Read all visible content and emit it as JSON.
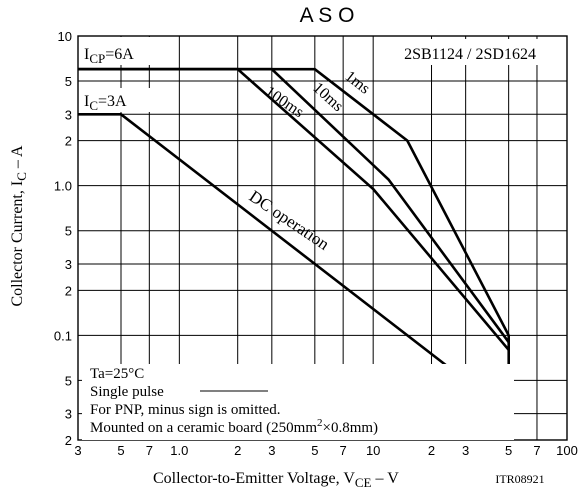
{
  "chart_data": {
    "type": "line",
    "title": "A S O",
    "part_number": "2SB1124 / 2SD1624",
    "image_code": "ITR08921",
    "xlabel": {
      "main": "Collector-to-Emitter Voltage, V",
      "sub": "CE",
      "tail": " – V"
    },
    "ylabel": {
      "main": "Collector Current, I",
      "sub": "C",
      "tail": " – A"
    },
    "xscale": "log",
    "yscale": "log",
    "xlim": [
      0.3,
      100
    ],
    "ylim": [
      0.02,
      10
    ],
    "grid": true,
    "x_ticks": [
      {
        "v": 0.3,
        "t": "3"
      },
      {
        "v": 0.5,
        "t": "5"
      },
      {
        "v": 0.7,
        "t": "7"
      },
      {
        "v": 1,
        "t": "1.0"
      },
      {
        "v": 2,
        "t": "2"
      },
      {
        "v": 3,
        "t": "3"
      },
      {
        "v": 5,
        "t": "5"
      },
      {
        "v": 7,
        "t": "7"
      },
      {
        "v": 10,
        "t": "10"
      },
      {
        "v": 20,
        "t": "2"
      },
      {
        "v": 30,
        "t": "3"
      },
      {
        "v": 50,
        "t": "5"
      },
      {
        "v": 70,
        "t": "7"
      },
      {
        "v": 100,
        "t": "100"
      }
    ],
    "y_ticks": [
      {
        "v": 0.02,
        "t": "2"
      },
      {
        "v": 0.03,
        "t": "3"
      },
      {
        "v": 0.05,
        "t": "5"
      },
      {
        "v": 0.1,
        "t": "0.1"
      },
      {
        "v": 0.2,
        "t": "2"
      },
      {
        "v": 0.3,
        "t": "3"
      },
      {
        "v": 0.5,
        "t": "5"
      },
      {
        "v": 1,
        "t": "1.0"
      },
      {
        "v": 2,
        "t": "2"
      },
      {
        "v": 3,
        "t": "3"
      },
      {
        "v": 5,
        "t": "5"
      },
      {
        "v": 10,
        "t": "10"
      }
    ],
    "series": [
      {
        "name": "1ms",
        "points": [
          [
            0.3,
            6
          ],
          [
            5,
            6
          ],
          [
            15,
            2
          ],
          [
            50,
            0.1
          ]
        ]
      },
      {
        "name": "10ms",
        "points": [
          [
            0.3,
            6
          ],
          [
            3,
            6
          ],
          [
            12,
            1.1
          ],
          [
            50,
            0.09
          ]
        ]
      },
      {
        "name": "100ms",
        "points": [
          [
            0.3,
            6
          ],
          [
            2,
            6
          ],
          [
            10,
            0.95
          ],
          [
            50,
            0.08
          ]
        ]
      },
      {
        "name": "DC operation",
        "points": [
          [
            0.3,
            3
          ],
          [
            0.5,
            3
          ],
          [
            50,
            0.03
          ],
          [
            50,
            0.1
          ]
        ]
      }
    ],
    "annotations": {
      "icp": {
        "main": "I",
        "sub": "CP",
        "tail": "=6A"
      },
      "ic": {
        "main": "I",
        "sub": "C",
        "tail": "=3A"
      },
      "notes": [
        "Ta=25°C",
        "Single pulse",
        "For PNP, minus sign is omitted."
      ],
      "board": {
        "pre": "Mounted on a ceramic board (250mm",
        "sup": "2",
        "post": "×0.8mm)"
      }
    }
  }
}
